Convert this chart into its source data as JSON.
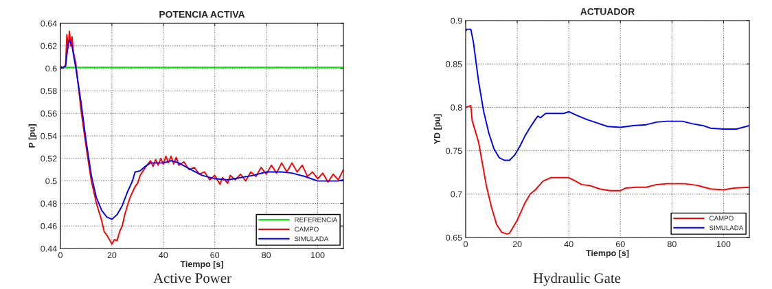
{
  "chart_data": [
    {
      "type": "line",
      "title": "POTENCIA ACTIVA",
      "xlabel": "Tiempo [s]",
      "ylabel": "P [pu]",
      "xlim": [
        0,
        110
      ],
      "xticks": [
        0,
        20,
        40,
        60,
        80,
        100
      ],
      "ylim": [
        0.44,
        0.64
      ],
      "yticks": [
        0.44,
        0.46,
        0.48,
        0.5,
        0.52,
        0.54,
        0.56,
        0.58,
        0.6,
        0.62,
        0.64
      ],
      "grid": true,
      "legend": "bottom right",
      "annotations": [
        "Active Power"
      ],
      "series": [
        {
          "name": "REFERENCIA",
          "color": "#00ee00",
          "x": [
            0,
            110
          ],
          "values": [
            0.601,
            0.601
          ]
        },
        {
          "name": "CAMPO",
          "color": "#ff0000",
          "x": [
            0,
            1,
            2,
            2.5,
            3,
            3.5,
            4,
            4.5,
            5,
            6,
            8,
            10,
            12,
            14,
            16,
            17,
            18,
            19,
            20,
            21,
            22,
            23,
            24,
            25,
            26,
            27,
            28,
            29,
            30,
            31,
            33,
            35,
            36,
            37,
            38,
            39,
            40,
            41,
            42,
            43,
            44,
            45,
            46,
            48,
            50,
            52,
            54,
            56,
            58,
            60,
            62,
            63,
            65,
            66,
            68,
            70,
            72,
            74,
            76,
            78,
            80,
            82,
            84,
            86,
            88,
            90,
            92,
            94,
            96,
            98,
            100,
            102,
            104,
            106,
            108,
            110
          ],
          "values": [
            0.602,
            0.6,
            0.603,
            0.63,
            0.618,
            0.633,
            0.62,
            0.628,
            0.615,
            0.604,
            0.563,
            0.53,
            0.5,
            0.48,
            0.465,
            0.455,
            0.452,
            0.448,
            0.444,
            0.448,
            0.447,
            0.455,
            0.46,
            0.47,
            0.478,
            0.485,
            0.49,
            0.495,
            0.498,
            0.505,
            0.512,
            0.518,
            0.513,
            0.519,
            0.514,
            0.52,
            0.515,
            0.522,
            0.516,
            0.522,
            0.515,
            0.521,
            0.514,
            0.517,
            0.51,
            0.512,
            0.506,
            0.508,
            0.501,
            0.505,
            0.497,
            0.503,
            0.498,
            0.505,
            0.501,
            0.506,
            0.5,
            0.508,
            0.504,
            0.512,
            0.506,
            0.514,
            0.507,
            0.516,
            0.508,
            0.516,
            0.508,
            0.514,
            0.504,
            0.508,
            0.502,
            0.507,
            0.499,
            0.506,
            0.501,
            0.51
          ]
        },
        {
          "name": "SIMULADA",
          "color": "#0000ff",
          "x": [
            0,
            2,
            3,
            3.5,
            4.5,
            6,
            8,
            10,
            12,
            14,
            16,
            18,
            20,
            22,
            24,
            26,
            28,
            29,
            31,
            33,
            35,
            40,
            43,
            46,
            50,
            55,
            60,
            65,
            70,
            75,
            80,
            86,
            90,
            95,
            100,
            105,
            108,
            110
          ],
          "values": [
            0.6,
            0.602,
            0.622,
            0.625,
            0.62,
            0.6,
            0.57,
            0.535,
            0.505,
            0.485,
            0.474,
            0.468,
            0.466,
            0.47,
            0.478,
            0.49,
            0.5,
            0.508,
            0.509,
            0.513,
            0.516,
            0.516,
            0.518,
            0.516,
            0.511,
            0.505,
            0.502,
            0.501,
            0.503,
            0.505,
            0.508,
            0.508,
            0.507,
            0.504,
            0.5,
            0.5,
            0.5,
            0.501
          ]
        }
      ]
    },
    {
      "type": "line",
      "title": "ACTUADOR",
      "xlabel": "Tiempo [s]",
      "ylabel": "YD [pu]",
      "xlim": [
        0,
        110
      ],
      "xticks": [
        0,
        20,
        40,
        60,
        80,
        100
      ],
      "ylim": [
        0.65,
        0.9
      ],
      "yticks": [
        0.65,
        0.7,
        0.75,
        0.8,
        0.85,
        0.9
      ],
      "grid": true,
      "legend": "bottom right",
      "annotations": [
        "Hydraulic Gate"
      ],
      "series": [
        {
          "name": "CAMPO",
          "color": "#ff0000",
          "x": [
            0,
            2,
            2.5,
            5,
            8,
            10,
            12,
            14,
            16,
            17,
            20,
            23,
            25,
            27,
            30,
            33,
            40,
            42,
            45,
            48,
            52,
            56,
            60,
            62,
            66,
            70,
            74,
            78,
            85,
            90,
            95,
            100,
            104,
            110
          ],
          "values": [
            0.8,
            0.802,
            0.785,
            0.76,
            0.71,
            0.685,
            0.665,
            0.656,
            0.654,
            0.655,
            0.67,
            0.69,
            0.7,
            0.705,
            0.715,
            0.719,
            0.719,
            0.716,
            0.711,
            0.71,
            0.706,
            0.704,
            0.704,
            0.707,
            0.708,
            0.708,
            0.711,
            0.712,
            0.712,
            0.71,
            0.706,
            0.705,
            0.707,
            0.708
          ]
        },
        {
          "name": "SIMULADA",
          "color": "#0000ff",
          "x": [
            0,
            0.5,
            2,
            3,
            5,
            7,
            9,
            11,
            13,
            15,
            17,
            19,
            21,
            23,
            25,
            27,
            28,
            29,
            31,
            35,
            38,
            40,
            43,
            47,
            51,
            55,
            60,
            65,
            70,
            74,
            78,
            84,
            88,
            92,
            95,
            100,
            105,
            110
          ],
          "values": [
            0.888,
            0.89,
            0.89,
            0.875,
            0.83,
            0.795,
            0.77,
            0.752,
            0.742,
            0.739,
            0.739,
            0.745,
            0.755,
            0.767,
            0.777,
            0.786,
            0.79,
            0.788,
            0.793,
            0.793,
            0.793,
            0.795,
            0.791,
            0.786,
            0.782,
            0.778,
            0.777,
            0.779,
            0.78,
            0.783,
            0.784,
            0.784,
            0.781,
            0.779,
            0.776,
            0.775,
            0.775,
            0.779
          ]
        }
      ]
    }
  ]
}
